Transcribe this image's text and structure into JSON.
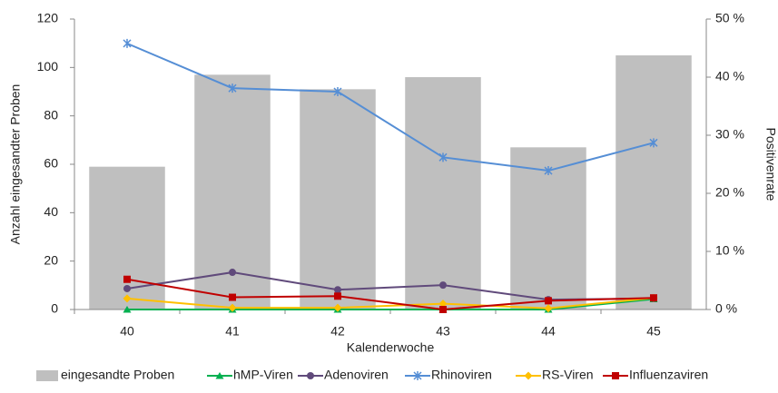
{
  "chart_data": {
    "type": "bar-line",
    "x_label": "Kalenderwoche",
    "y_label": "Anzahl eingesandter Proben",
    "y2_label": "Positivenrate",
    "categories": [
      "40",
      "41",
      "42",
      "43",
      "44",
      "45"
    ],
    "ylim": [
      0,
      120
    ],
    "yticks": [
      0,
      20,
      40,
      60,
      80,
      100,
      120
    ],
    "y2lim": [
      0,
      50
    ],
    "y2ticks": [
      {
        "value": 0,
        "label": "0 %"
      },
      {
        "value": 10,
        "label": "10 %"
      },
      {
        "value": 20,
        "label": "20 %"
      },
      {
        "value": 30,
        "label": "30 %"
      },
      {
        "value": 40,
        "label": "40 %"
      },
      {
        "value": 50,
        "label": "50 %"
      }
    ],
    "series": [
      {
        "name": "eingesandte Proben",
        "kind": "bar",
        "color": "#bfbfbf",
        "values": [
          59,
          97,
          91,
          96,
          67,
          105
        ]
      },
      {
        "name": "hMP-Viren",
        "kind": "line",
        "axis": "y2",
        "marker": "triangle",
        "color": "#00b050",
        "values": [
          0,
          0,
          0,
          0,
          0,
          1.8
        ]
      },
      {
        "name": "Adenoviren",
        "kind": "line",
        "axis": "y2",
        "marker": "circle",
        "color": "#604a7b",
        "values": [
          3.6,
          6.4,
          3.4,
          4.2,
          1.7,
          1.9
        ]
      },
      {
        "name": "Rhinoviren",
        "kind": "line",
        "axis": "y2",
        "marker": "star",
        "color": "#558ed5",
        "values": [
          45.8,
          38.1,
          37.5,
          26.2,
          23.9,
          28.7
        ]
      },
      {
        "name": "RS-Viren",
        "kind": "line",
        "axis": "y2",
        "marker": "diamond",
        "color": "#ffc000",
        "values": [
          1.9,
          0.3,
          0.3,
          1.0,
          0.2,
          2.0
        ]
      },
      {
        "name": "Influenzaviren",
        "kind": "line",
        "axis": "y2",
        "marker": "square",
        "color": "#c00000",
        "values": [
          5.2,
          2.1,
          2.3,
          0,
          1.5,
          2.0
        ]
      }
    ]
  }
}
